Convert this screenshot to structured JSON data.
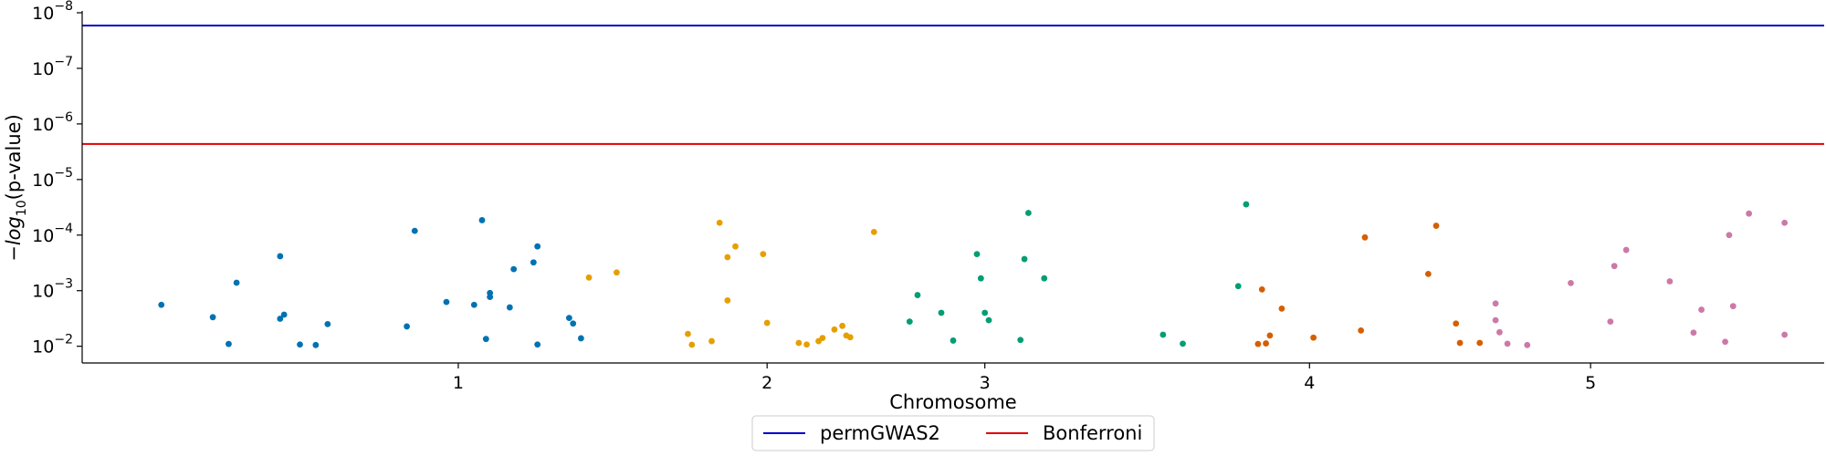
{
  "chart_data": {
    "type": "scatter",
    "title": "",
    "xlabel": "Chromosome",
    "ylabel_parts": [
      "−",
      "log",
      "10",
      "(p-value)"
    ],
    "y_scale": "log",
    "y_direction": "decreasing-upward",
    "ylim": [
      0.02,
      1e-08
    ],
    "yticks": [
      {
        "value": 0.01,
        "base": "10",
        "exp": "−2"
      },
      {
        "value": 0.001,
        "base": "10",
        "exp": "−3"
      },
      {
        "value": 0.0001,
        "base": "10",
        "exp": "−4"
      },
      {
        "value": 1e-05,
        "base": "10",
        "exp": "−5"
      },
      {
        "value": 1e-06,
        "base": "10",
        "exp": "−6"
      },
      {
        "value": 1e-07,
        "base": "10",
        "exp": "−7"
      },
      {
        "value": 1e-08,
        "base": "10",
        "exp": "−8"
      }
    ],
    "xlim": [
      0,
      44
    ],
    "xticks": [
      {
        "value": 9.5,
        "label": "1"
      },
      {
        "value": 17.3,
        "label": "2"
      },
      {
        "value": 22.8,
        "label": "3"
      },
      {
        "value": 31.0,
        "label": "4"
      },
      {
        "value": 38.1,
        "label": "5"
      }
    ],
    "grid": false,
    "legend_position": "bottom-center",
    "thresholds": [
      {
        "name": "permGWAS2",
        "p": 1.7e-08,
        "color": "#0000c8"
      },
      {
        "name": "Bonferroni",
        "p": 2.3e-06,
        "color": "#e00000"
      }
    ],
    "series": [
      {
        "color": "#0072b2",
        "points": [
          [
            2.0,
            0.0018
          ],
          [
            3.3,
            0.003
          ],
          [
            3.7,
            0.0091
          ],
          [
            3.9,
            0.00072
          ],
          [
            5.0,
            0.00024
          ],
          [
            5.0,
            0.0032
          ],
          [
            5.1,
            0.0027
          ],
          [
            5.5,
            0.0093
          ],
          [
            5.9,
            0.0095
          ],
          [
            6.2,
            0.004
          ],
          [
            8.2,
            0.0044
          ],
          [
            8.4,
            8.4e-05
          ],
          [
            9.2,
            0.0016
          ],
          [
            9.9,
            0.0018
          ],
          [
            10.1,
            5.4e-05
          ],
          [
            10.2,
            0.0074
          ],
          [
            10.3,
            0.0011
          ],
          [
            10.3,
            0.0013
          ],
          [
            10.8,
            0.002
          ],
          [
            10.9,
            0.00041
          ],
          [
            11.4,
            0.00031
          ],
          [
            11.5,
            0.00016
          ],
          [
            11.5,
            0.0093
          ],
          [
            12.3,
            0.0031
          ],
          [
            12.4,
            0.0039
          ],
          [
            12.6,
            0.0072
          ]
        ]
      },
      {
        "color": "#e69f00",
        "points": [
          [
            12.8,
            0.00058
          ],
          [
            13.5,
            0.00047
          ],
          [
            15.3,
            0.006
          ],
          [
            15.4,
            0.0094
          ],
          [
            15.9,
            0.0081
          ],
          [
            16.1,
            6e-05
          ],
          [
            16.3,
            0.0015
          ],
          [
            16.3,
            0.00025
          ],
          [
            16.5,
            0.00016
          ],
          [
            17.2,
            0.00022
          ],
          [
            17.3,
            0.0038
          ],
          [
            18.1,
            0.0087
          ],
          [
            18.3,
            0.0093
          ],
          [
            18.6,
            0.0081
          ],
          [
            18.7,
            0.0071
          ],
          [
            19.0,
            0.005
          ],
          [
            19.2,
            0.0043
          ],
          [
            19.3,
            0.0064
          ],
          [
            19.4,
            0.0069
          ],
          [
            20.0,
            8.8e-05
          ]
        ]
      },
      {
        "color": "#009e73",
        "points": [
          [
            20.9,
            0.0036
          ],
          [
            21.1,
            0.0012
          ],
          [
            21.7,
            0.0025
          ],
          [
            22.0,
            0.0079
          ],
          [
            22.6,
            0.00022
          ],
          [
            22.7,
            0.0006
          ],
          [
            22.8,
            0.0025
          ],
          [
            22.9,
            0.0034
          ],
          [
            23.7,
            0.0077
          ],
          [
            23.8,
            0.00027
          ],
          [
            23.9,
            4e-05
          ],
          [
            24.3,
            0.0006
          ],
          [
            27.3,
            0.0062
          ],
          [
            27.8,
            0.009
          ],
          [
            29.2,
            0.00083
          ],
          [
            29.4,
            2.8e-05
          ]
        ]
      },
      {
        "color": "#d55e00",
        "points": [
          [
            29.7,
            0.0091
          ],
          [
            29.8,
            0.00095
          ],
          [
            29.9,
            0.0089
          ],
          [
            30.0,
            0.0064
          ],
          [
            30.3,
            0.0021
          ],
          [
            31.1,
            0.007
          ],
          [
            32.4,
            0.00011
          ],
          [
            32.3,
            0.0052
          ],
          [
            34.0,
            0.0005
          ],
          [
            34.2,
            6.8e-05
          ],
          [
            34.7,
            0.0039
          ],
          [
            34.8,
            0.0087
          ],
          [
            35.3,
            0.0087
          ]
        ]
      },
      {
        "color": "#cc79a7",
        "points": [
          [
            35.7,
            0.0017
          ],
          [
            35.7,
            0.0034
          ],
          [
            35.8,
            0.0056
          ],
          [
            36.0,
            0.009
          ],
          [
            36.5,
            0.0095
          ],
          [
            37.6,
            0.00073
          ],
          [
            38.6,
            0.0036
          ],
          [
            38.7,
            0.00036
          ],
          [
            39.0,
            0.000185
          ],
          [
            40.1,
            0.00068
          ],
          [
            40.7,
            0.0057
          ],
          [
            40.9,
            0.0022
          ],
          [
            41.5,
            0.0083
          ],
          [
            41.6,
            0.0001
          ],
          [
            41.7,
            0.0019
          ],
          [
            42.1,
            4.1e-05
          ],
          [
            43.0,
            6e-05
          ],
          [
            43.0,
            0.0062
          ]
        ]
      }
    ]
  }
}
